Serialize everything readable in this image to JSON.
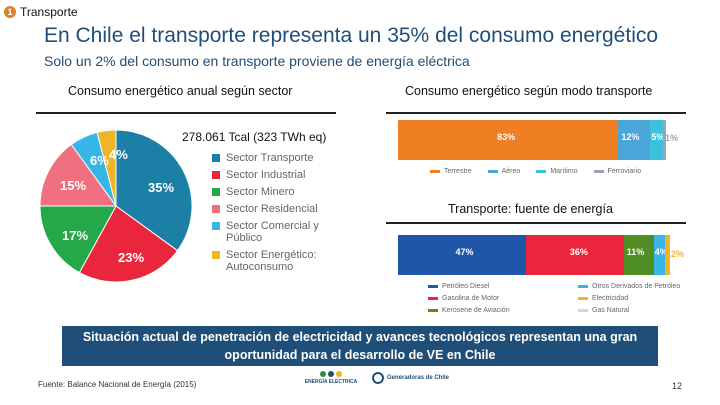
{
  "header": {
    "section_number": "1",
    "section_label": "Transporte",
    "title": "En Chile el transporte representa un 35% del consumo energético",
    "subtitle": "Solo un 2% del consumo en transporte proviene de energía eléctrica"
  },
  "colors": {
    "title": "#1f4e79",
    "banner_bg": "#1f4e79",
    "pie_transporte": "#1b7fa6",
    "pie_industrial": "#e9263c",
    "pie_minero": "#25a84a",
    "pie_residencial": "#f07080",
    "pie_comercial": "#35b6e6",
    "pie_autoconsumo": "#f0b429",
    "mode_terrestre": "#f07e22",
    "mode_aereo": "#4aa6d8",
    "mode_maritimo": "#3dc0dc",
    "mode_ferroviario": "#9ea0b8",
    "fuel_diesel": "#1f56a8",
    "fuel_gasolina": "#e9263c",
    "fuel_kerosene": "#4f8f25",
    "fuel_otros": "#3bb5e5",
    "fuel_electricidad": "#f0b429",
    "fuel_gas": "#cfd7df"
  },
  "chart_data": [
    {
      "type": "pie",
      "title": "Consumo energético anual según sector",
      "annotation": "278.061 Tcal (323 TWh eq)",
      "categories": [
        "Sector Transporte",
        "Sector Industrial",
        "Sector Minero",
        "Sector Residencial",
        "Sector Comercial y Público",
        "Sector Energético: Autoconsumo"
      ],
      "values": [
        35,
        23,
        17,
        15,
        6,
        4
      ],
      "data_labels": [
        "35%",
        "23%",
        "17%",
        "15%",
        "6%",
        "4%"
      ],
      "legend": [
        "Sector Transporte",
        "Sector Industrial",
        "Sector Minero",
        "Sector Residencial",
        "Sector Comercial y Público",
        "Sector Energético: Autoconsumo"
      ]
    },
    {
      "type": "bar",
      "orientation": "horizontal-stacked",
      "title": "Consumo energético según modo transporte",
      "categories": [
        "Terrestre",
        "Aéreo",
        "Marítimo",
        "Ferroviario"
      ],
      "values": [
        83,
        12,
        5,
        1
      ],
      "data_labels": [
        "83%",
        "12%",
        "5%",
        "1%"
      ]
    },
    {
      "type": "bar",
      "orientation": "horizontal-stacked",
      "title": "Transporte: fuente de energía",
      "categories": [
        "Petróleo Diesel",
        "Gasolina de Motor",
        "Kerosene de Aviación",
        "Otros Derivados de Petróleo",
        "Electricidad",
        "Gas Natural"
      ],
      "values": [
        47,
        36,
        11,
        4,
        2,
        0
      ],
      "data_labels": [
        "47%",
        "36%",
        "11%",
        "4%",
        "2%",
        ""
      ]
    }
  ],
  "legends": {
    "sector": [
      {
        "label": "Sector Transporte"
      },
      {
        "label": "Sector Industrial"
      },
      {
        "label": "Sector Minero"
      },
      {
        "label": "Sector Residencial"
      },
      {
        "label": "Sector Comercial y Público"
      },
      {
        "label": "Sector Energético: Autoconsumo"
      }
    ],
    "mode": [
      "Terrestre",
      "Aéreo",
      "Marítimo",
      "Ferroviario"
    ],
    "fuel": [
      "Petróleo Diesel",
      "Otros Derivados de Petróleo",
      "Gasolina de Motor",
      "Electricidad",
      "Kerosene de Aviación",
      "Gas Natural"
    ]
  },
  "banner": {
    "line1": "Situación actual de penetración de electricidad y avances tecnológicos representan una gran",
    "line2": "oportunidad para el desarrollo de VE en Chile"
  },
  "footer": {
    "source": "Fuente: Balance Nacional de Energía (2015)",
    "page_number": "12",
    "logo1_line1": "ENERGÍA ELECTRICA",
    "logo2_line1": "Generadoras de Chile"
  }
}
